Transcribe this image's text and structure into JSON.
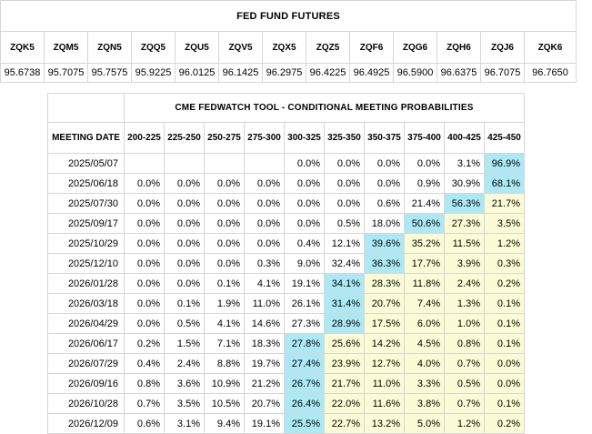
{
  "futures": {
    "title": "FED FUND FUTURES",
    "contracts": [
      "ZQK5",
      "ZQM5",
      "ZQN5",
      "ZQQ5",
      "ZQU5",
      "ZQV5",
      "ZQX5",
      "ZQZ5",
      "ZQF6",
      "ZQG6",
      "ZQH6",
      "ZQJ6",
      "ZQK6"
    ],
    "prices": [
      "95.6738",
      "95.7075",
      "95.7575",
      "95.9225",
      "96.0125",
      "96.1425",
      "96.2975",
      "96.4225",
      "96.4925",
      "96.5900",
      "96.6375",
      "96.7075",
      "96.7650"
    ]
  },
  "fedwatch": {
    "title": "CME FEDWATCH TOOL - CONDITIONAL MEETING PROBABILITIES",
    "date_header": "MEETING DATE",
    "ranges": [
      "200-225",
      "225-250",
      "250-275",
      "275-300",
      "300-325",
      "325-350",
      "350-375",
      "375-400",
      "400-425",
      "425-450"
    ],
    "colors": {
      "highest": "#ade9f4",
      "nonzero": "#fbfcd6",
      "default": "#ffffff"
    },
    "rows": [
      {
        "date": "2025/05/07",
        "cells": [
          "",
          "",
          "",
          "",
          "0.0%",
          "0.0%",
          "0.0%",
          "0.0%",
          "3.1%",
          "96.9%"
        ],
        "hl": [
          "",
          "",
          "",
          "",
          "",
          "",
          "",
          "",
          "",
          "hi"
        ]
      },
      {
        "date": "2025/06/18",
        "cells": [
          "0.0%",
          "0.0%",
          "0.0%",
          "0.0%",
          "0.0%",
          "0.0%",
          "0.0%",
          "0.9%",
          "30.9%",
          "68.1%"
        ],
        "hl": [
          "",
          "",
          "",
          "",
          "",
          "",
          "",
          "",
          "",
          "hi"
        ]
      },
      {
        "date": "2025/07/30",
        "cells": [
          "0.0%",
          "0.0%",
          "0.0%",
          "0.0%",
          "0.0%",
          "0.0%",
          "0.6%",
          "21.4%",
          "56.3%",
          "21.7%"
        ],
        "hl": [
          "",
          "",
          "",
          "",
          "",
          "",
          "",
          "",
          "hi",
          "lo"
        ]
      },
      {
        "date": "2025/09/17",
        "cells": [
          "0.0%",
          "0.0%",
          "0.0%",
          "0.0%",
          "0.0%",
          "0.5%",
          "18.0%",
          "50.6%",
          "27.3%",
          "3.5%"
        ],
        "hl": [
          "",
          "",
          "",
          "",
          "",
          "",
          "",
          "hi",
          "lo",
          "lo"
        ]
      },
      {
        "date": "2025/10/29",
        "cells": [
          "0.0%",
          "0.0%",
          "0.0%",
          "0.0%",
          "0.4%",
          "12.1%",
          "39.6%",
          "35.2%",
          "11.5%",
          "1.2%"
        ],
        "hl": [
          "",
          "",
          "",
          "",
          "",
          "",
          "hi",
          "lo",
          "lo",
          "lo"
        ]
      },
      {
        "date": "2025/12/10",
        "cells": [
          "0.0%",
          "0.0%",
          "0.0%",
          "0.3%",
          "9.0%",
          "32.4%",
          "36.3%",
          "17.7%",
          "3.9%",
          "0.3%"
        ],
        "hl": [
          "",
          "",
          "",
          "",
          "",
          "",
          "hi",
          "lo",
          "lo",
          "lo"
        ]
      },
      {
        "date": "2026/01/28",
        "cells": [
          "0.0%",
          "0.0%",
          "0.1%",
          "4.1%",
          "19.1%",
          "34.1%",
          "28.3%",
          "11.8%",
          "2.4%",
          "0.2%"
        ],
        "hl": [
          "",
          "",
          "",
          "",
          "",
          "hi",
          "lo",
          "lo",
          "lo",
          "lo"
        ]
      },
      {
        "date": "2026/03/18",
        "cells": [
          "0.0%",
          "0.1%",
          "1.9%",
          "11.0%",
          "26.1%",
          "31.4%",
          "20.7%",
          "7.4%",
          "1.3%",
          "0.1%"
        ],
        "hl": [
          "",
          "",
          "",
          "",
          "",
          "hi",
          "lo",
          "lo",
          "lo",
          "lo"
        ]
      },
      {
        "date": "2026/04/29",
        "cells": [
          "0.0%",
          "0.5%",
          "4.1%",
          "14.6%",
          "27.3%",
          "28.9%",
          "17.5%",
          "6.0%",
          "1.0%",
          "0.1%"
        ],
        "hl": [
          "",
          "",
          "",
          "",
          "",
          "hi",
          "lo",
          "lo",
          "lo",
          "lo"
        ]
      },
      {
        "date": "2026/06/17",
        "cells": [
          "0.2%",
          "1.5%",
          "7.1%",
          "18.3%",
          "27.8%",
          "25.6%",
          "14.2%",
          "4.5%",
          "0.8%",
          "0.1%"
        ],
        "hl": [
          "",
          "",
          "",
          "",
          "hi",
          "lo",
          "lo",
          "lo",
          "lo",
          "lo"
        ]
      },
      {
        "date": "2026/07/29",
        "cells": [
          "0.4%",
          "2.4%",
          "8.8%",
          "19.7%",
          "27.4%",
          "23.9%",
          "12.7%",
          "4.0%",
          "0.7%",
          "0.0%"
        ],
        "hl": [
          "",
          "",
          "",
          "",
          "hi",
          "lo",
          "lo",
          "lo",
          "lo",
          "lo"
        ]
      },
      {
        "date": "2026/09/16",
        "cells": [
          "0.8%",
          "3.6%",
          "10.9%",
          "21.2%",
          "26.7%",
          "21.7%",
          "11.0%",
          "3.3%",
          "0.5%",
          "0.0%"
        ],
        "hl": [
          "",
          "",
          "",
          "",
          "hi",
          "lo",
          "lo",
          "lo",
          "lo",
          "lo"
        ]
      },
      {
        "date": "2026/10/28",
        "cells": [
          "0.7%",
          "3.5%",
          "10.5%",
          "20.7%",
          "26.4%",
          "22.0%",
          "11.6%",
          "3.8%",
          "0.7%",
          "0.1%"
        ],
        "hl": [
          "",
          "",
          "",
          "",
          "hi",
          "lo",
          "lo",
          "lo",
          "lo",
          "lo"
        ]
      },
      {
        "date": "2026/12/09",
        "cells": [
          "0.6%",
          "3.1%",
          "9.4%",
          "19.1%",
          "25.5%",
          "22.7%",
          "13.2%",
          "5.0%",
          "1.2%",
          "0.2%"
        ],
        "hl": [
          "",
          "",
          "",
          "",
          "hi",
          "lo",
          "lo",
          "lo",
          "lo",
          "lo"
        ]
      }
    ]
  }
}
